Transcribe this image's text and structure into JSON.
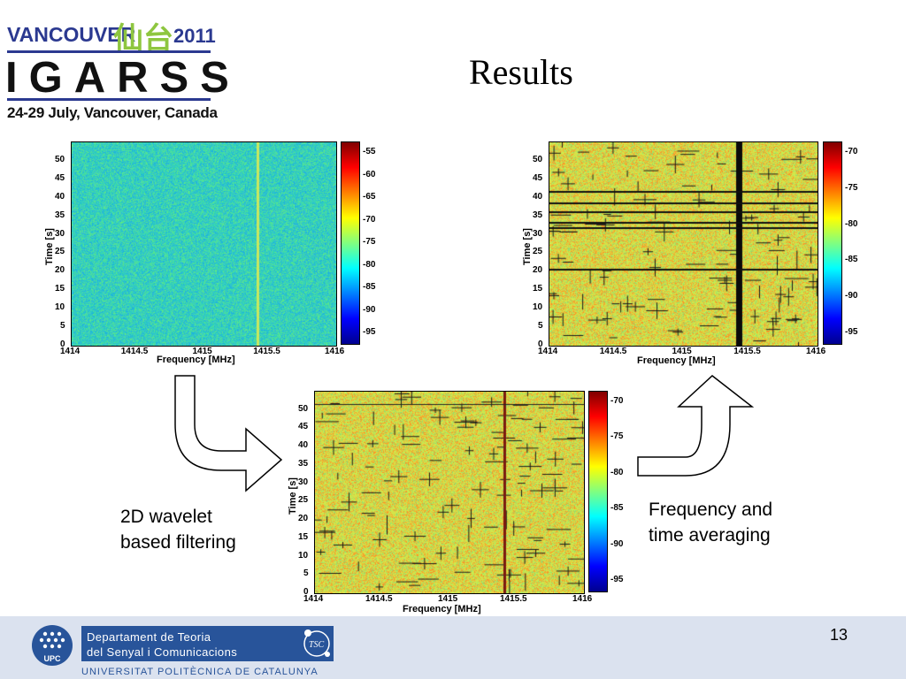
{
  "header": {
    "logo_city": "VANCOUVER",
    "logo_chinese": "仙台",
    "logo_year": "2011",
    "logo_name": "IGARSS",
    "logo_dates": "24-29 July, Vancouver, Canada",
    "title": "Results"
  },
  "captions": {
    "left_line1": "2D wavelet",
    "left_line2": "based filtering",
    "right_line1": "Frequency and",
    "right_line2": "time averaging"
  },
  "plots": [
    {
      "id": "original",
      "xlabel": "Frequency [MHz]",
      "ylabel": "Time [s]",
      "xticks": [
        "1414",
        "1414.5",
        "1415",
        "1415.5",
        "1416"
      ],
      "yticks": [
        "0",
        "5",
        "10",
        "15",
        "20",
        "25",
        "30",
        "35",
        "40",
        "45",
        "50"
      ],
      "colorbar_ticks": [
        "-55",
        "-60",
        "-65",
        "-70",
        "-75",
        "-80",
        "-85",
        "-90",
        "-95"
      ],
      "base_color": "#33d6b4"
    },
    {
      "id": "wavelet",
      "xlabel": "Frequency [MHz]",
      "ylabel": "Time [s]",
      "xticks": [
        "1414",
        "1414.5",
        "1415",
        "1415.5",
        "1416"
      ],
      "yticks": [
        "0",
        "5",
        "10",
        "15",
        "20",
        "25",
        "30",
        "35",
        "40",
        "45",
        "50"
      ],
      "colorbar_ticks": [
        "-70",
        "-75",
        "-80",
        "-85",
        "-90",
        "-95"
      ],
      "base_color": "#d2e64a"
    },
    {
      "id": "averaged",
      "xlabel": "Frequency [MHz]",
      "ylabel": "Time [s]",
      "xticks": [
        "1414",
        "1414.5",
        "1415",
        "1415.5",
        "1416"
      ],
      "yticks": [
        "0",
        "5",
        "10",
        "15",
        "20",
        "25",
        "30",
        "35",
        "40",
        "45",
        "50"
      ],
      "colorbar_ticks": [
        "-70",
        "-75",
        "-80",
        "-85",
        "-90",
        "-95"
      ],
      "base_color": "#d2e64a"
    }
  ],
  "footer": {
    "dept_line1": "Departament de Teoria",
    "dept_line2": "del Senyal i Comunicacions",
    "university": "UNIVERSITAT POLITÈCNICA DE CATALUNYA",
    "upc_label": "UPC",
    "tsc_label": "TSC",
    "page_number": "13"
  }
}
